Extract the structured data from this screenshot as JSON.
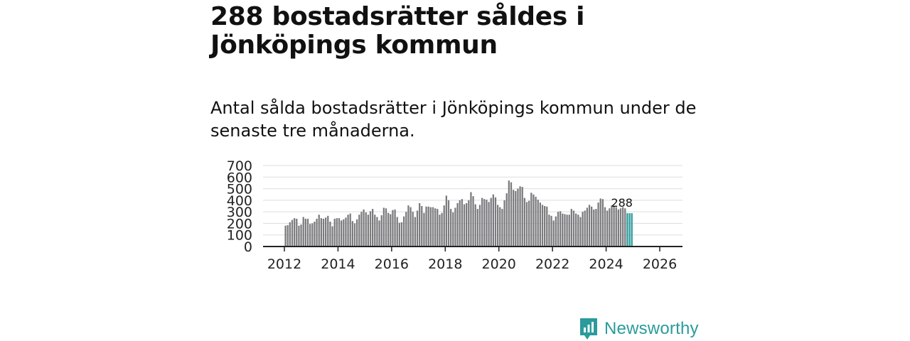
{
  "title": "288 bostadsrätter såldes i Jönköpings kommun",
  "subtitle": "Antal sålda bostadsrätter i Jönköpings kommun under de senaste tre månaderna.",
  "brand": {
    "name": "Newsworthy",
    "color": "#2b9b9b",
    "icon": "newsworthy-logo-icon"
  },
  "chart_data": {
    "type": "bar",
    "y_ticks": [
      "700",
      "600",
      "500",
      "400",
      "300",
      "200",
      "100",
      "0"
    ],
    "x_ticks": [
      "2012",
      "2014",
      "2016",
      "2018",
      "2020",
      "2022",
      "2024",
      "2026"
    ],
    "ylim": [
      0,
      700
    ],
    "start": "2012-01",
    "bar_color": "#7b7b7f",
    "highlight_color": "#2b9b9b",
    "highlight_count": 3,
    "annotation": "288",
    "values": [
      180,
      185,
      210,
      230,
      245,
      240,
      180,
      190,
      255,
      240,
      240,
      195,
      200,
      215,
      240,
      275,
      245,
      240,
      250,
      265,
      215,
      175,
      240,
      245,
      245,
      225,
      235,
      250,
      275,
      285,
      220,
      200,
      235,
      275,
      300,
      320,
      295,
      275,
      305,
      325,
      275,
      255,
      225,
      270,
      335,
      330,
      290,
      280,
      315,
      320,
      255,
      205,
      210,
      260,
      300,
      355,
      340,
      300,
      255,
      310,
      375,
      350,
      290,
      345,
      345,
      340,
      340,
      330,
      325,
      275,
      290,
      355,
      440,
      400,
      325,
      295,
      335,
      375,
      400,
      410,
      365,
      375,
      400,
      470,
      435,
      365,
      325,
      360,
      420,
      410,
      405,
      385,
      420,
      450,
      425,
      360,
      340,
      325,
      400,
      460,
      570,
      555,
      490,
      480,
      500,
      520,
      515,
      420,
      385,
      395,
      465,
      450,
      430,
      405,
      380,
      360,
      350,
      345,
      275,
      265,
      225,
      260,
      300,
      305,
      285,
      280,
      275,
      275,
      325,
      310,
      285,
      275,
      255,
      300,
      310,
      335,
      360,
      345,
      320,
      325,
      380,
      415,
      410,
      340,
      310,
      330,
      355,
      345,
      340,
      320,
      330,
      340,
      330,
      288,
      288,
      288
    ]
  }
}
